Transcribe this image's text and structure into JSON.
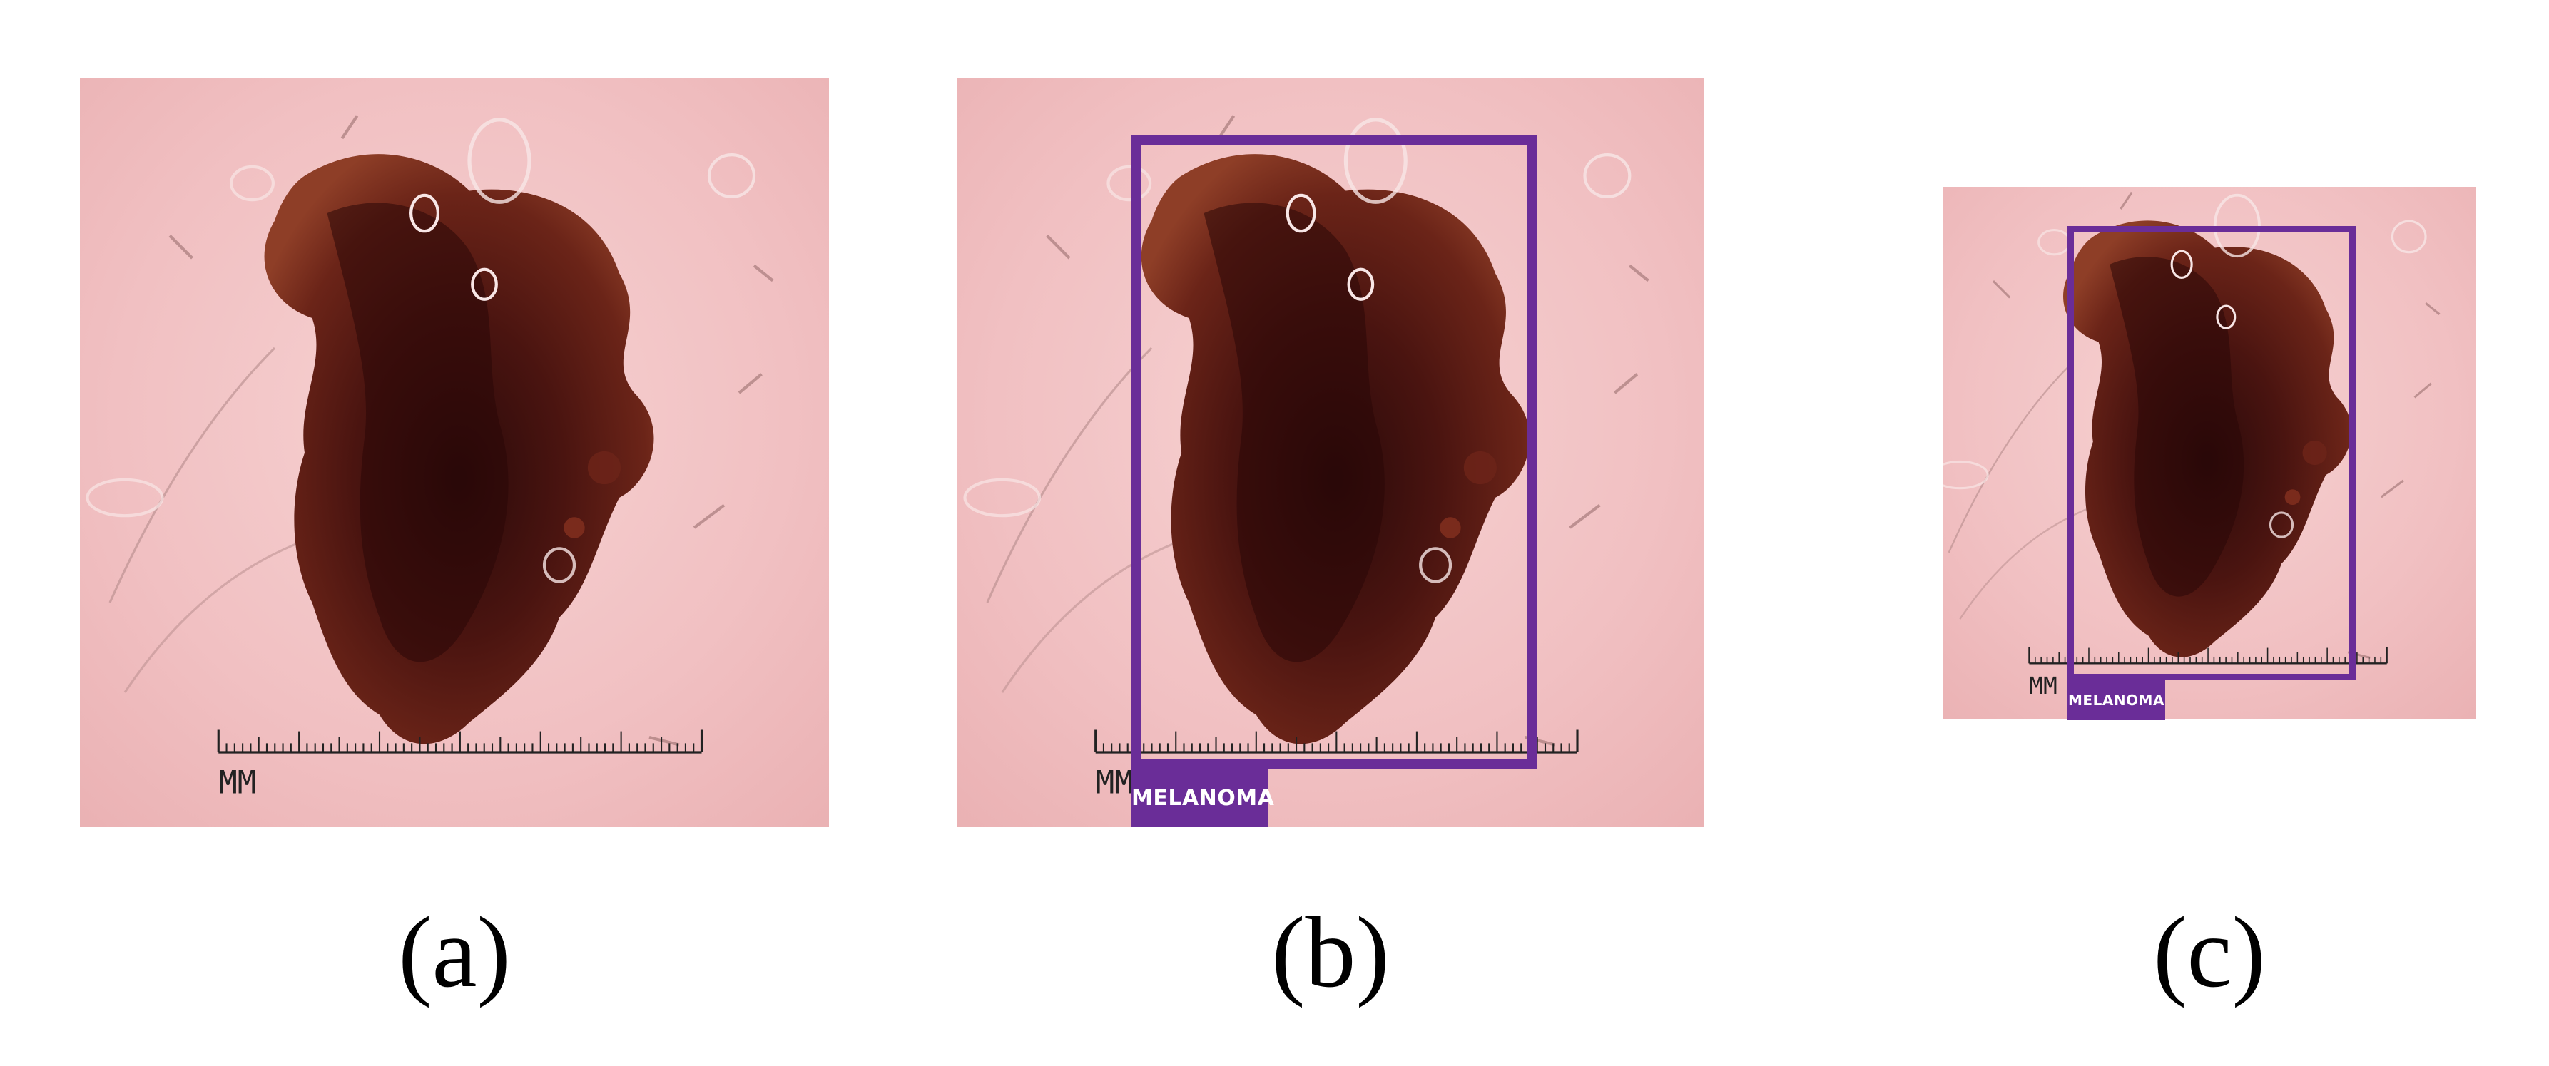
{
  "panels": [
    {
      "caption": "(a)",
      "ruler_label": "MM",
      "image": "dermoscopy-lesion-photo"
    },
    {
      "caption": "(b)",
      "ruler_label": "MM",
      "image": "dermoscopy-lesion-photo",
      "box_label": "MELANOMA"
    },
    {
      "caption": "(c)",
      "ruler_label": "MM",
      "image": "dermoscopy-lesion-photo-cropped",
      "box_label": "MELANOMA"
    }
  ],
  "colors": {
    "skin": "#f2c3c5",
    "lesion_dark": "#3a1010",
    "lesion_mid": "#6b2418",
    "lesion_light": "#9a4a2e",
    "box": "#6a2d98",
    "label_text": "#ffffff"
  }
}
